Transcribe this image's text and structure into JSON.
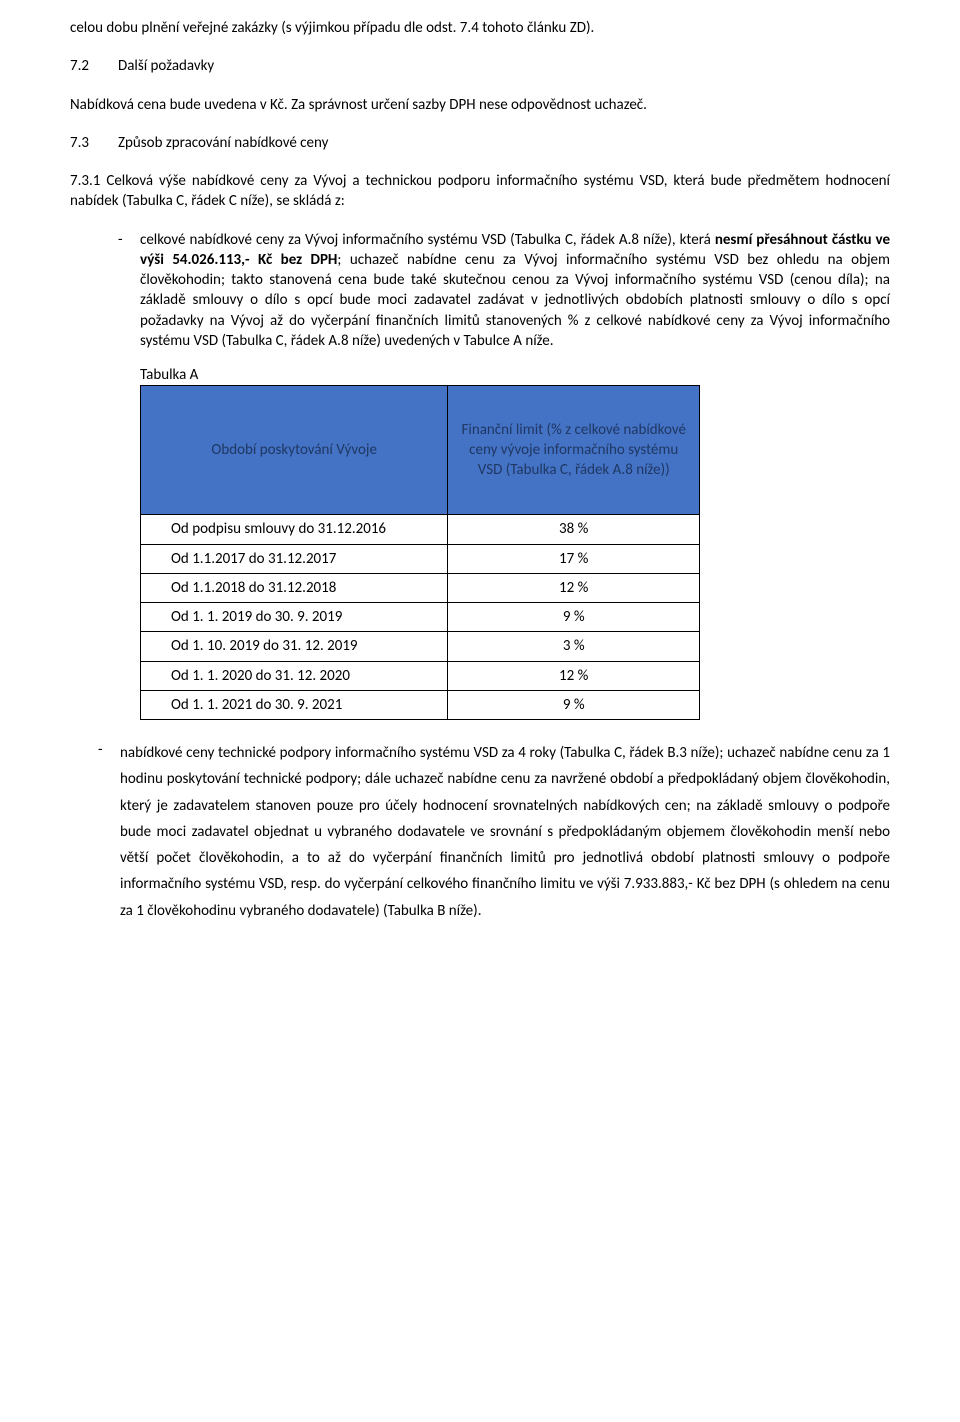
{
  "p_intro": "celou dobu plnění veřejné zakázky (s výjimkou případu dle odst. 7.4 tohoto článku ZD).",
  "s72": {
    "num": "7.2",
    "title": "Další požadavky"
  },
  "p72": "Nabídková cena bude uvedena v Kč. Za správnost určení sazby DPH nese odpovědnost uchazeč.",
  "s73": {
    "num": "7.3",
    "title": "Způsob zpracování nabídkové ceny"
  },
  "p731": "7.3.1 Celková výše nabídkové ceny za Vývoj a technickou podporu informačního systému VSD, která bude předmětem hodnocení nabídek (Tabulka C, řádek C níže), se skládá z:",
  "bullet1": {
    "mark": "-",
    "pre": "celkové nabídkové ceny za Vývoj informačního systému VSD (Tabulka C, řádek A.8 níže), která ",
    "bold": "nesmí přesáhnout částku ve výši 54.026.113,- Kč bez DPH",
    "post": "; uchazeč nabídne cenu za Vývoj informačního systému VSD bez ohledu na objem člověkohodin; takto stanovená cena bude také skutečnou cenou za Vývoj informačního systému VSD (cenou díla); na základě smlouvy o dílo s opcí bude moci zadavatel zadávat v jednotlivých obdobích platnosti smlouvy o dílo s opcí požadavky na Vývoj až do vyčerpání finančních limitů stanovených % z celkové nabídkové ceny za Vývoj informačního systému VSD (Tabulka C, řádek A.8 níže) uvedených v Tabulce A níže."
  },
  "tableA": {
    "label": "Tabulka A",
    "header_bg": "#4472c4",
    "header_text_color": "#1f3864",
    "border_color": "#000000",
    "col1_header": "Období poskytování Vývoje",
    "col2_header": "Finanční limit\n(% z celkové nabídkové ceny vývoje informačního systému VSD (Tabulka C, řádek A.8 níže))",
    "rows": [
      {
        "period": "Od podpisu smlouvy do 31.12.2016",
        "limit": "38 %"
      },
      {
        "period": "Od 1.1.2017 do 31.12.2017",
        "limit": "17 %"
      },
      {
        "period": "Od 1.1.2018 do 31.12.2018",
        "limit": "12 %"
      },
      {
        "period": "Od 1. 1. 2019 do 30. 9. 2019",
        "limit": "9 %"
      },
      {
        "period": "Od 1. 10. 2019 do 31. 12. 2019",
        "limit": "3 %"
      },
      {
        "period": "Od 1. 1. 2020 do 31. 12. 2020",
        "limit": "12 %"
      },
      {
        "period": "Od 1. 1. 2021 do 30. 9. 2021",
        "limit": "9 %"
      }
    ]
  },
  "bullet2": {
    "mark": "-",
    "text": "nabídkové ceny technické podpory informačního systému VSD za 4 roky (Tabulka C, řádek B.3 níže); uchazeč nabídne cenu za 1 hodinu poskytování technické podpory; dále uchazeč nabídne cenu za navržené období a předpokládaný objem člověkohodin, který je zadavatelem stanoven pouze pro účely hodnocení srovnatelných nabídkových cen; na základě smlouvy o podpoře bude moci zadavatel objednat u vybraného dodavatele ve srovnání s předpokládaným objemem člověkohodin menší nebo větší počet člověkohodin, a to až do vyčerpání finančních limitů pro jednotlivá období platnosti smlouvy o podpoře informačního systému VSD, resp. do vyčerpání celkového finančního limitu ve výši 7.933.883,- Kč bez DPH (s ohledem na cenu za 1 člověkohodinu vybraného dodavatele) (Tabulka B níže)."
  },
  "bullet2_line_height": 1.75
}
